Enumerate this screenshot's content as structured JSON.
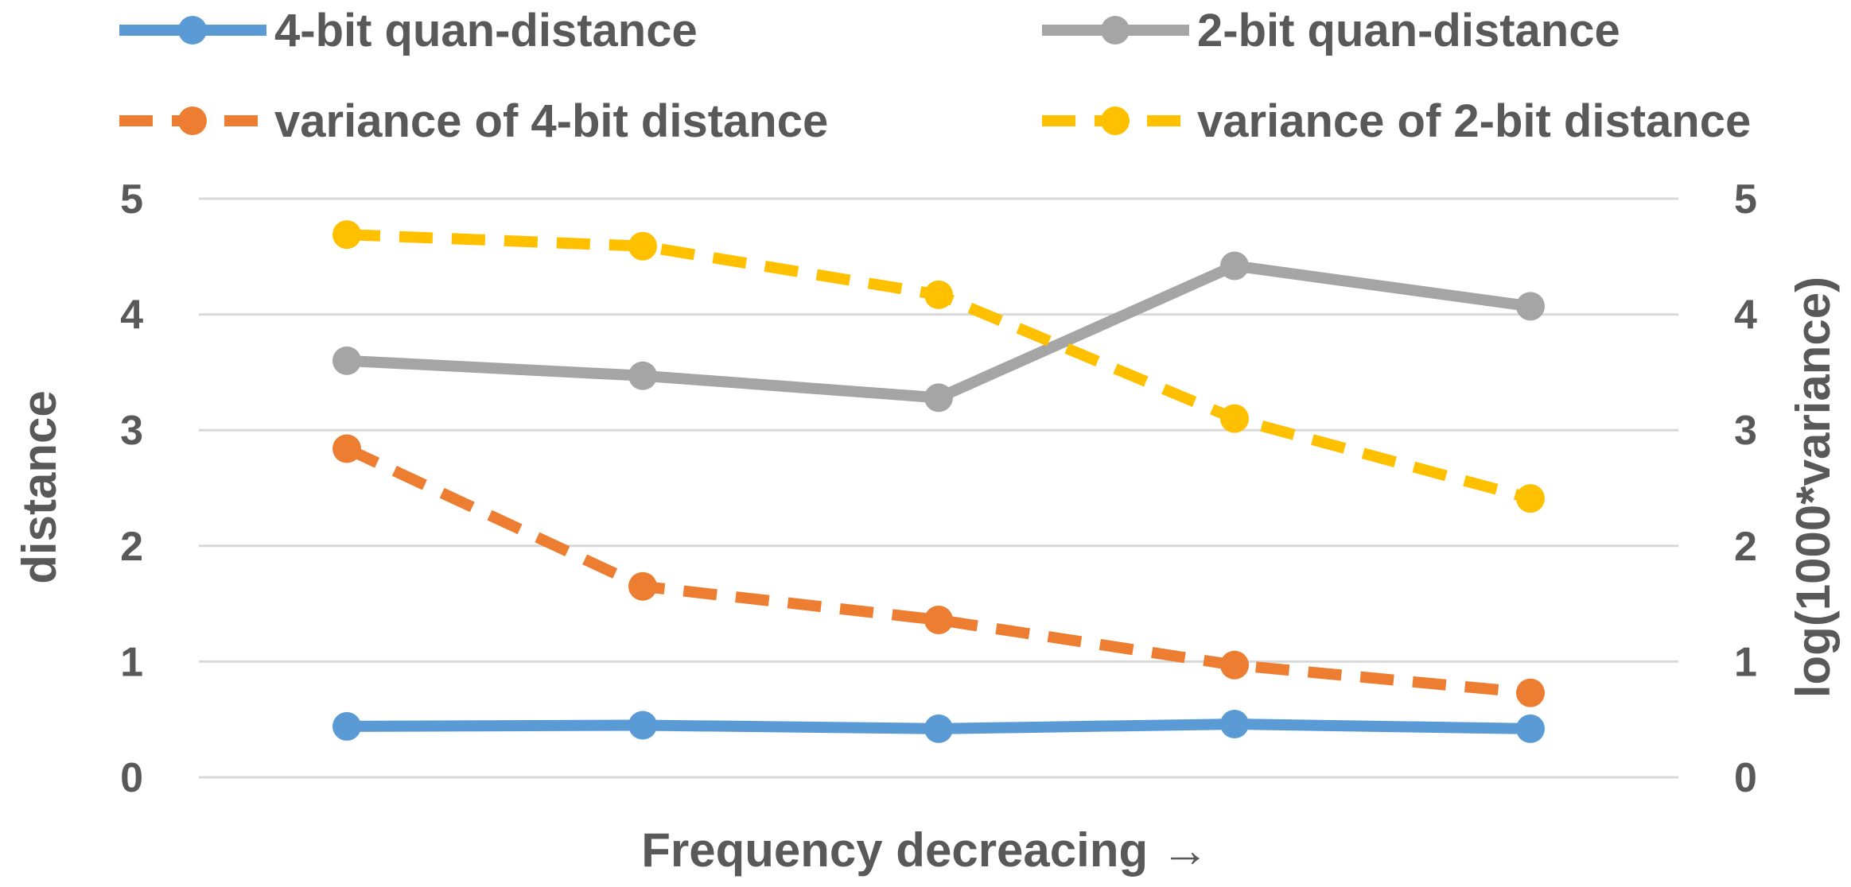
{
  "chart_data": {
    "type": "line",
    "categories": [
      "",
      "",
      "",
      "",
      ""
    ],
    "xlabel": "Frequency  decreacing  →",
    "ylabel": "distance",
    "y2label": "log(1000*variance)",
    "ylim": [
      0,
      5
    ],
    "y2lim": [
      0,
      5
    ],
    "yticks": [
      "0",
      "1",
      "2",
      "3",
      "4",
      "5"
    ],
    "y2ticks": [
      "0",
      "1",
      "2",
      "3",
      "4",
      "5"
    ],
    "grid": true,
    "legend_position": "top",
    "series": [
      {
        "name": "4-bit quan-distance",
        "axis": "left",
        "style": "solid",
        "color": "#5B9BD5",
        "values": [
          0.44,
          0.45,
          0.42,
          0.46,
          0.42
        ]
      },
      {
        "name": "2-bit quan-distance",
        "axis": "left",
        "style": "solid",
        "color": "#A5A5A5",
        "values": [
          3.6,
          3.47,
          3.28,
          4.42,
          4.07
        ]
      },
      {
        "name": "variance of 4-bit distance",
        "axis": "right",
        "style": "dashed",
        "color": "#ED7D31",
        "values": [
          2.84,
          1.65,
          1.36,
          0.97,
          0.73
        ]
      },
      {
        "name": "variance of 2-bit distance",
        "axis": "right",
        "style": "dashed",
        "color": "#FFC000",
        "values": [
          4.69,
          4.59,
          4.17,
          3.1,
          2.41
        ]
      }
    ]
  }
}
